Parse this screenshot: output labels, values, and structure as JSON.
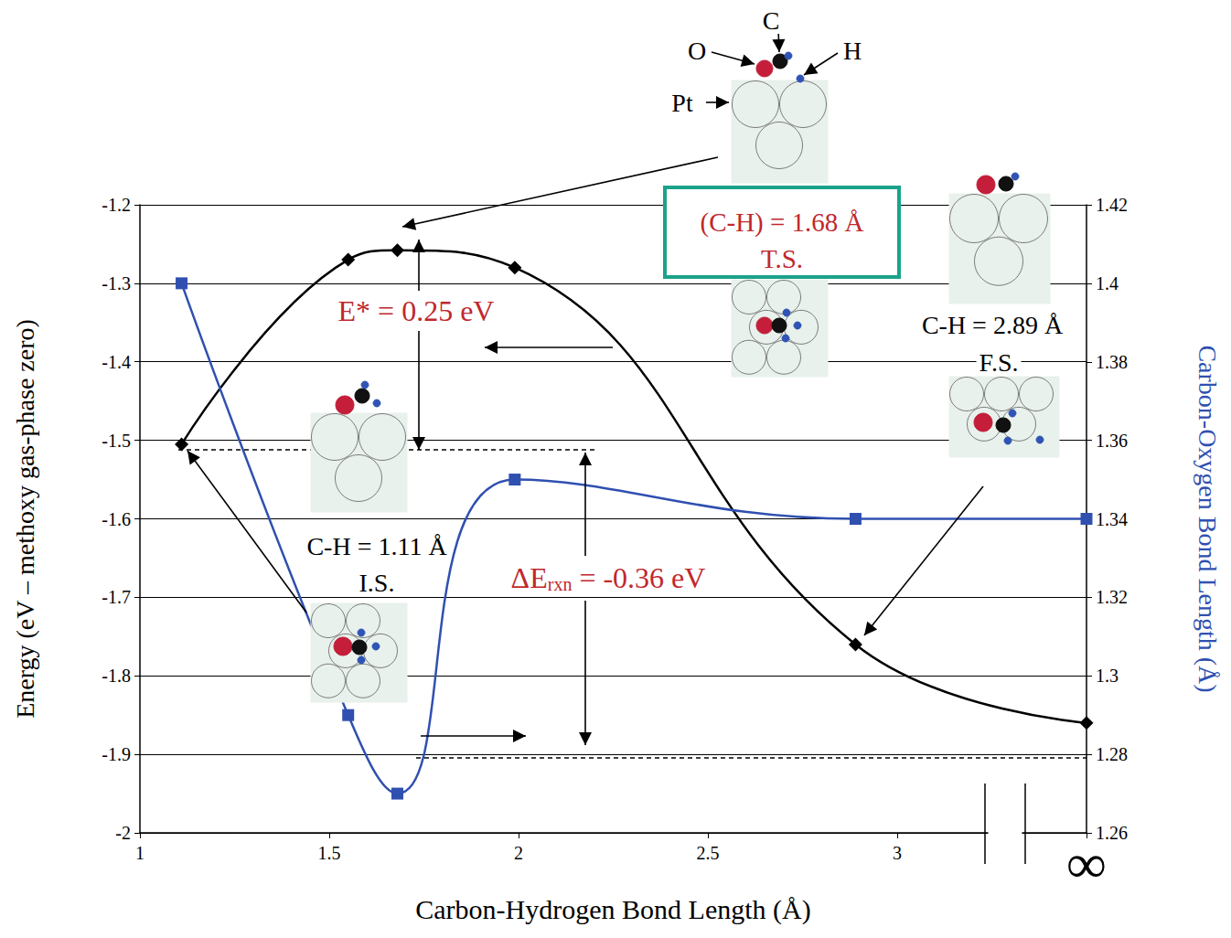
{
  "chart_data": {
    "type": "line",
    "x_label": "Carbon-Hydrogen Bond Length (Å)",
    "y_label": "Energy (eV – methoxy gas-phase zero)",
    "y2_label": "Carbon-Oxygen Bond Length (Å)",
    "x": [
      1.11,
      1.55,
      1.68,
      1.99,
      2.89,
      3.5
    ],
    "series": [
      {
        "color": "#000000",
        "marker": "diamond",
        "values": [
          -1.505,
          -1.27,
          -1.258,
          -1.28,
          -1.76,
          -1.86
        ]
      },
      {
        "color": "#3050b0",
        "marker": "square",
        "axis": "y2",
        "values": [
          1.4,
          1.29,
          1.27,
          1.35,
          1.34,
          1.34
        ]
      }
    ],
    "xlim": [
      1,
      3.5
    ],
    "xticks": [
      1,
      1.5,
      2,
      2.5,
      3,
      {
        "value": 3.5,
        "label": "∞"
      }
    ],
    "ylim": [
      -2,
      -1.2
    ],
    "yticks": [
      -2,
      -1.9,
      -1.8,
      -1.7,
      -1.6,
      -1.5,
      -1.4,
      -1.3,
      -1.2
    ],
    "y2lim": [
      1.26,
      1.42
    ],
    "y2ticks": [
      1.26,
      1.28,
      1.3,
      1.32,
      1.34,
      1.36,
      1.38,
      1.4,
      1.42
    ],
    "grid": true,
    "annotations": [
      {
        "text": "E* = 0.25 eV",
        "color": "#c0282d"
      },
      {
        "text": "ΔErxn = -0.36 eV",
        "subscript": "rxn",
        "color": "#c0282d"
      },
      {
        "text": "(C-H) = 1.68 Å",
        "color": "#c0282d"
      },
      {
        "text": "T.S.",
        "color": "#c0282d"
      },
      {
        "text": "C-H = 2.89 Å",
        "color": "#000000"
      },
      {
        "text": "F.S.",
        "color": "#000000"
      },
      {
        "text": "C-H = 1.11 Å",
        "color": "#000000"
      },
      {
        "text": "I.S.",
        "color": "#000000"
      },
      {
        "text": "O",
        "color": "#000000"
      },
      {
        "text": "C",
        "color": "#000000"
      },
      {
        "text": "H",
        "color": "#000000"
      },
      {
        "text": "Pt",
        "color": "#000000"
      }
    ]
  }
}
